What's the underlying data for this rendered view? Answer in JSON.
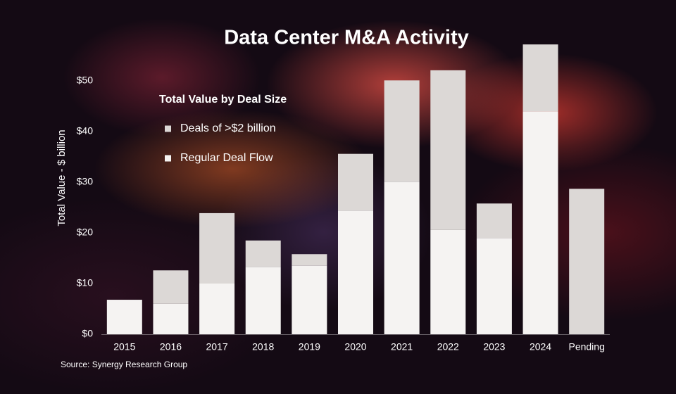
{
  "chart_data": {
    "type": "stacked_bar",
    "title": "Data Center M&A Activity",
    "y_label": "Total Value - $ billion",
    "legend_title": "Total Value by Deal Size",
    "source": "Source: Synergy Research Group",
    "categories": [
      "2015",
      "2016",
      "2017",
      "2018",
      "2019",
      "2020",
      "2021",
      "2022",
      "2023",
      "2024",
      "Pending"
    ],
    "series": [
      {
        "name": "Deals of >$2 billion",
        "color": "#dcd8d6",
        "values": [
          0,
          6.6,
          13.9,
          5.2,
          2.3,
          11.2,
          20.0,
          31.5,
          6.8,
          13.2,
          28.7
        ]
      },
      {
        "name": "Regular Deal Flow",
        "color": "#f5f3f2",
        "values": [
          6.8,
          6.0,
          10.0,
          13.3,
          13.5,
          24.4,
          30.1,
          20.6,
          19.0,
          44.0,
          0
        ]
      }
    ],
    "ylim": [
      0,
      60
    ],
    "yticks": [
      {
        "value": 0,
        "label": "$0"
      },
      {
        "value": 10,
        "label": "$10"
      },
      {
        "value": 20,
        "label": "$20"
      },
      {
        "value": 30,
        "label": "$30"
      },
      {
        "value": 40,
        "label": "$40"
      },
      {
        "value": 50,
        "label": "$50"
      }
    ],
    "grid": false
  }
}
